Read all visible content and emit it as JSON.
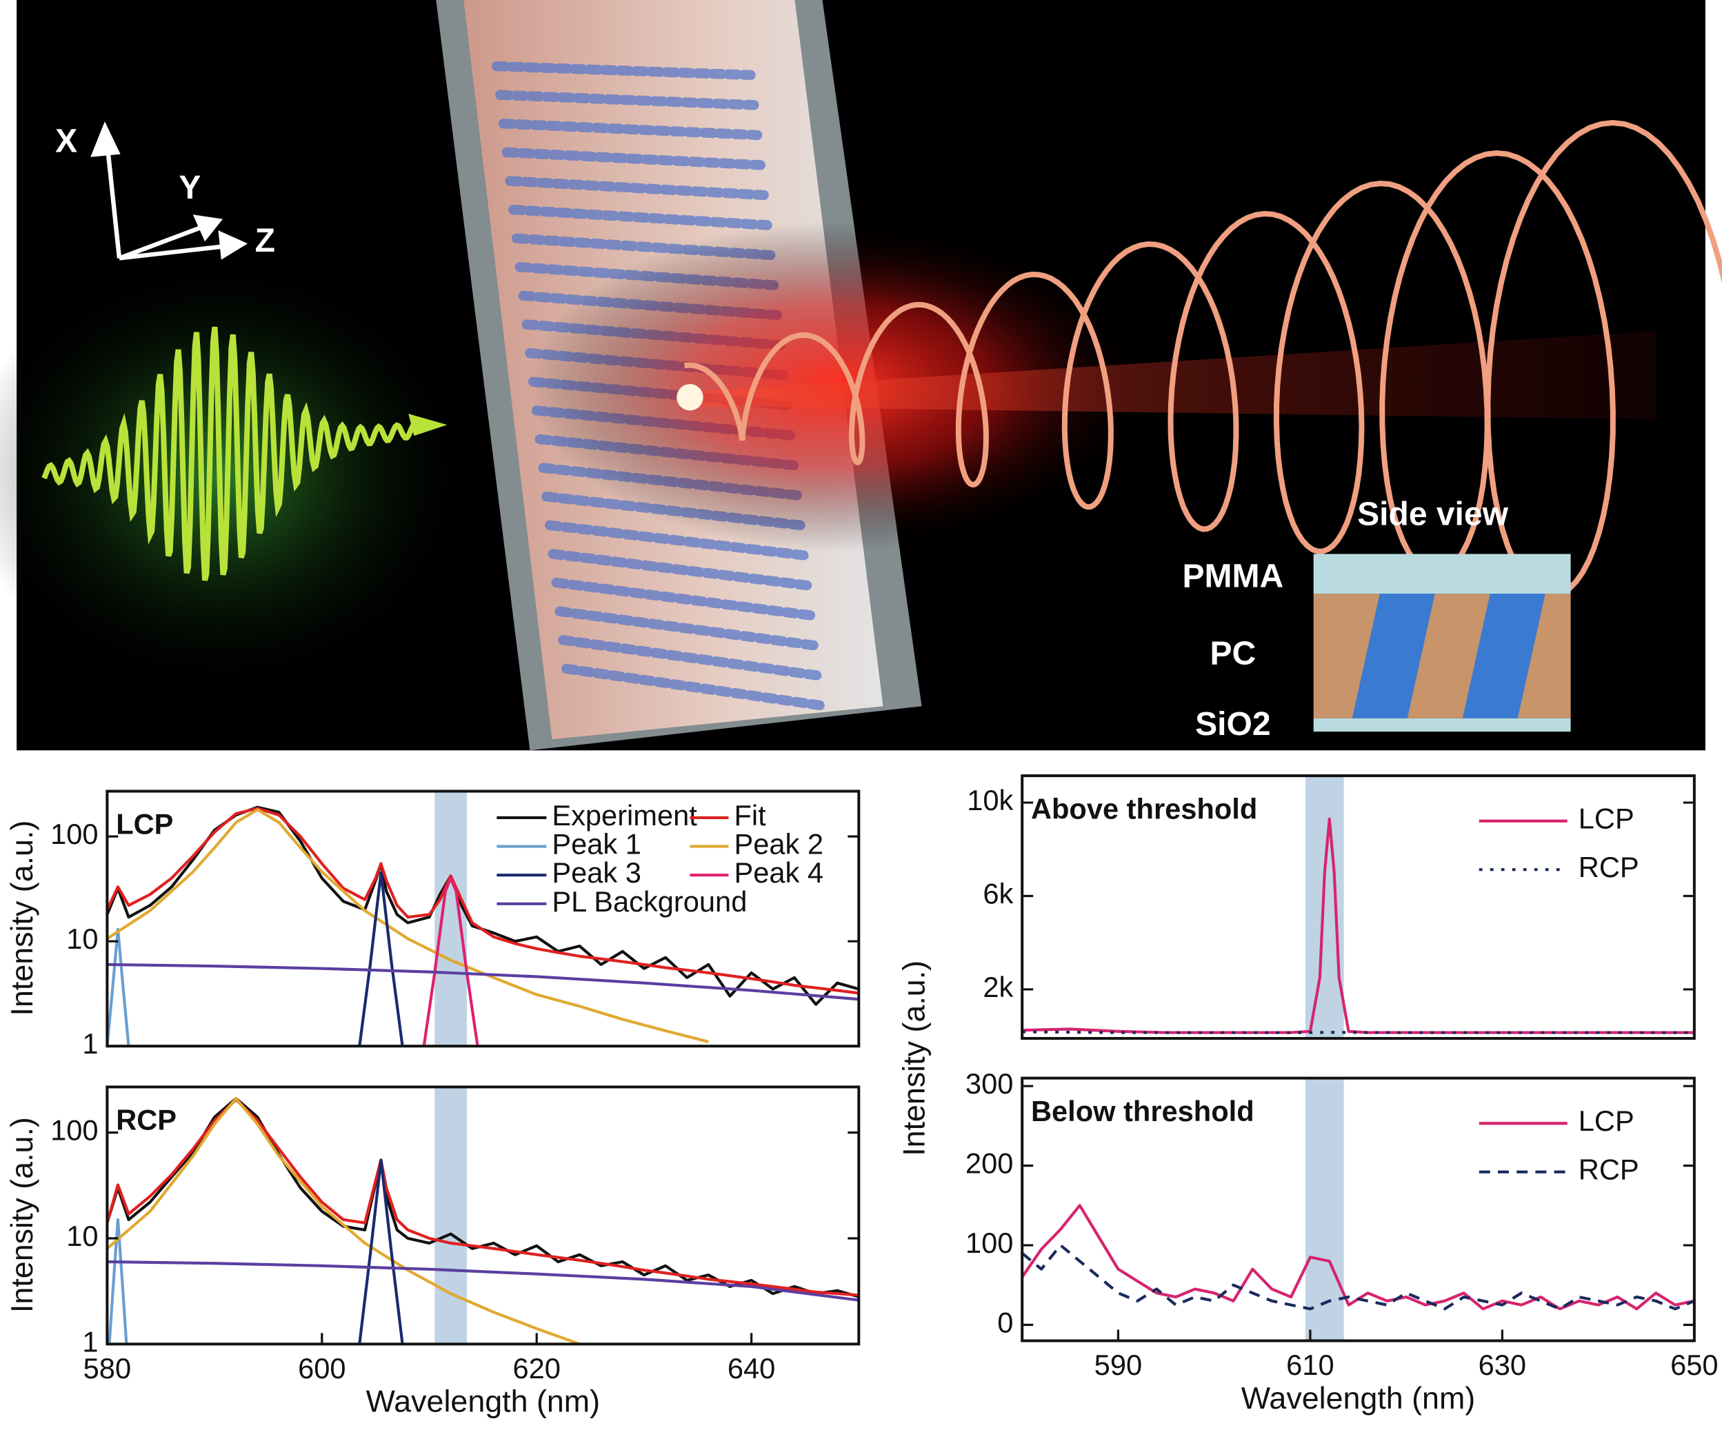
{
  "illustration": {
    "axes": [
      "X",
      "Y",
      "Z"
    ],
    "inset_title": "Side view",
    "layers": [
      "PMMA",
      "PC",
      "SiO2"
    ]
  },
  "chart_data": [
    {
      "type": "line",
      "label": "LCP",
      "y_label": "Intensity (a.u.)",
      "yscale": "log",
      "xlim": [
        580,
        650
      ],
      "ylim": [
        1,
        270
      ],
      "yticks": [
        1,
        10,
        100
      ],
      "highlight": [
        610.5,
        613.5
      ],
      "grid": false,
      "series": [
        {
          "name": "Experiment",
          "color": "#111111",
          "x": [
            580,
            581,
            582,
            584,
            586,
            588,
            590,
            592,
            594,
            596,
            598,
            600,
            602,
            604,
            605,
            605.5,
            606,
            607,
            608,
            610,
            611,
            612,
            613,
            614,
            616,
            618,
            620,
            622,
            624,
            626,
            628,
            630,
            632,
            634,
            636,
            638,
            640,
            642,
            644,
            646,
            648,
            650
          ],
          "values": [
            18,
            32,
            17,
            22,
            33,
            60,
            115,
            160,
            190,
            170,
            90,
            40,
            24,
            20,
            38,
            55,
            30,
            18,
            15,
            17,
            28,
            42,
            22,
            14,
            12,
            10,
            11,
            8,
            9,
            6,
            8,
            5.5,
            7,
            4.5,
            6,
            3,
            5,
            3.5,
            4.5,
            2.5,
            4,
            3.5
          ]
        },
        {
          "name": "Fit",
          "color": "#e02020",
          "x": [
            580,
            581,
            582,
            584,
            586,
            588,
            590,
            592,
            594,
            596,
            598,
            600,
            602,
            604,
            605,
            605.5,
            606,
            607,
            608,
            610,
            611,
            612,
            613,
            614,
            616,
            618,
            620,
            622,
            624,
            626,
            628,
            630,
            632,
            634,
            636,
            638,
            640,
            642,
            644,
            646,
            648,
            650
          ],
          "values": [
            20,
            33,
            22,
            28,
            40,
            65,
            110,
            165,
            185,
            160,
            100,
            55,
            32,
            25,
            40,
            55,
            38,
            22,
            17,
            18,
            25,
            42,
            25,
            15,
            11,
            9.5,
            8.5,
            7.8,
            7.2,
            6.8,
            6.4,
            6.0,
            5.6,
            5.3,
            5.0,
            4.7,
            4.4,
            4.1,
            3.8,
            3.6,
            3.4,
            3.2
          ]
        },
        {
          "name": "Peak 1",
          "color": "#6a9fcf",
          "x": [
            580,
            580.5,
            581,
            581.5,
            582
          ],
          "values": [
            1,
            3.5,
            13,
            3.5,
            1
          ]
        },
        {
          "name": "Peak 2",
          "color": "#e0a930",
          "x": [
            580,
            584,
            588,
            590,
            592,
            594,
            596,
            598,
            600,
            604,
            608,
            612,
            616,
            620,
            624,
            628,
            632,
            636
          ],
          "values": [
            10.6,
            19.6,
            46,
            78,
            136,
            180,
            136,
            78,
            46,
            19.6,
            10.6,
            6.6,
            4.5,
            3.1,
            2.4,
            1.8,
            1.4,
            1.1
          ]
        },
        {
          "name": "Peak 3",
          "color": "#1a2a6e",
          "x": [
            603.5,
            604.5,
            605.5,
            606.5,
            607.5
          ],
          "values": [
            1,
            6,
            45,
            6,
            1
          ]
        },
        {
          "name": "Peak 4",
          "color": "#e0206e",
          "x": [
            609.5,
            610.5,
            611.5,
            612,
            612.5,
            613.5,
            614.5
          ],
          "values": [
            1,
            5,
            30,
            40,
            30,
            5,
            1
          ]
        },
        {
          "name": "PL Background",
          "color": "#5b3fa0",
          "x": [
            580,
            590,
            600,
            610,
            620,
            630,
            640,
            650
          ],
          "values": [
            6,
            5.8,
            5.5,
            5.1,
            4.6,
            4.0,
            3.4,
            2.8
          ]
        }
      ]
    },
    {
      "type": "line",
      "label": "RCP",
      "y_label": "Intensity (a.u.)",
      "x_label": "Wavelength (nm)",
      "yscale": "log",
      "xlim": [
        580,
        650
      ],
      "ylim": [
        1,
        270
      ],
      "xticks": [
        580,
        600,
        620,
        640
      ],
      "yticks": [
        1,
        10,
        100
      ],
      "highlight": [
        610.5,
        613.5
      ],
      "grid": false,
      "series": [
        {
          "color": "#111111",
          "x": [
            580,
            581,
            582,
            584,
            586,
            588,
            590,
            592,
            594,
            596,
            598,
            600,
            602,
            604,
            605,
            605.5,
            606,
            607,
            608,
            610,
            612,
            614,
            616,
            618,
            620,
            622,
            624,
            626,
            628,
            630,
            632,
            634,
            636,
            638,
            640,
            642,
            644,
            646,
            648,
            650
          ],
          "values": [
            14,
            30,
            15,
            22,
            38,
            65,
            140,
            210,
            140,
            62,
            30,
            18,
            13,
            12,
            33,
            55,
            25,
            12,
            10,
            9,
            11,
            8,
            9,
            7,
            8.5,
            6,
            7,
            5.5,
            6,
            4.5,
            5.5,
            4,
            4.5,
            3.5,
            4,
            3,
            3.5,
            3,
            3.2,
            2.8
          ]
        },
        {
          "color": "#e02020",
          "x": [
            580,
            581,
            582,
            584,
            586,
            588,
            590,
            592,
            594,
            596,
            598,
            600,
            602,
            604,
            605,
            605.5,
            606,
            607,
            608,
            610,
            612,
            614,
            616,
            618,
            620,
            622,
            624,
            626,
            628,
            630,
            632,
            634,
            636,
            638,
            640,
            642,
            644,
            646,
            648,
            650
          ],
          "values": [
            14,
            32,
            17,
            25,
            40,
            70,
            130,
            205,
            130,
            70,
            38,
            22,
            15,
            14,
            35,
            55,
            30,
            15,
            12,
            10,
            9,
            8.5,
            8,
            7.5,
            7,
            6.6,
            6.2,
            5.8,
            5.4,
            5,
            4.7,
            4.4,
            4.1,
            3.9,
            3.7,
            3.5,
            3.3,
            3.1,
            3,
            2.9
          ]
        },
        {
          "color": "#6a9fcf",
          "x": [
            580.2,
            580.6,
            581,
            581.4,
            581.8
          ],
          "values": [
            1,
            4,
            15,
            4,
            1
          ]
        },
        {
          "color": "#e0a930",
          "x": [
            580,
            584,
            588,
            590,
            592,
            594,
            596,
            600,
            604,
            608,
            612,
            616,
            620,
            624
          ],
          "values": [
            8,
            18,
            60,
            120,
            210,
            120,
            60,
            20,
            9,
            5,
            3,
            2,
            1.4,
            1
          ]
        },
        {
          "color": "#1a2a6e",
          "x": [
            603.5,
            604.5,
            605.5,
            606.5,
            607.5
          ],
          "values": [
            1,
            7,
            55,
            7,
            1
          ]
        },
        {
          "color": "#5b3fa0",
          "x": [
            580,
            590,
            600,
            610,
            620,
            630,
            640,
            650
          ],
          "values": [
            6,
            5.8,
            5.5,
            5.1,
            4.6,
            4.1,
            3.5,
            2.6
          ]
        }
      ]
    },
    {
      "type": "line",
      "label": "Above threshold",
      "y_label": "Intensity (a.u.)",
      "xlim": [
        580,
        650
      ],
      "ylim": [
        -100,
        11150
      ],
      "yticks": [
        {
          "value": 2000,
          "label": "2k"
        },
        {
          "value": 6000,
          "label": "6k"
        },
        {
          "value": 10000,
          "label": "10k"
        }
      ],
      "highlight": [
        609.5,
        613.5
      ],
      "grid": false,
      "series": [
        {
          "name": "LCP",
          "color": "#d6246e",
          "line_style": "solid",
          "x": [
            580,
            585,
            590,
            595,
            600,
            605,
            608,
            610,
            611,
            611.5,
            612,
            612.5,
            613,
            614,
            616,
            620,
            625,
            630,
            635,
            640,
            645,
            650
          ],
          "values": [
            250,
            300,
            200,
            150,
            150,
            150,
            150,
            200,
            2500,
            7000,
            9300,
            7000,
            2500,
            200,
            150,
            150,
            150,
            150,
            150,
            150,
            150,
            150
          ]
        },
        {
          "name": "RCP",
          "color": "#1a2a5e",
          "line_style": "dotted",
          "x": [
            580,
            590,
            600,
            610,
            612,
            620,
            630,
            640,
            650
          ],
          "values": [
            180,
            150,
            150,
            150,
            160,
            150,
            150,
            150,
            150
          ]
        }
      ]
    },
    {
      "type": "line",
      "label": "Below threshold",
      "x_label": "Wavelength (nm)",
      "xlim": [
        580,
        650
      ],
      "ylim": [
        -20,
        310
      ],
      "xticks": [
        590,
        610,
        630,
        650
      ],
      "yticks": [
        0,
        100,
        200,
        300
      ],
      "highlight": [
        609.5,
        613.5
      ],
      "grid": false,
      "x": [
        580,
        582,
        584,
        586,
        588,
        590,
        592,
        594,
        596,
        598,
        600,
        602,
        604,
        606,
        608,
        610,
        612,
        614,
        616,
        618,
        620,
        622,
        624,
        626,
        628,
        630,
        632,
        634,
        636,
        638,
        640,
        642,
        644,
        646,
        648,
        650
      ],
      "series": [
        {
          "name": "LCP",
          "color": "#d6246e",
          "line_style": "solid",
          "values": [
            60,
            95,
            120,
            150,
            110,
            70,
            55,
            40,
            35,
            45,
            40,
            30,
            70,
            45,
            35,
            85,
            80,
            25,
            40,
            30,
            35,
            25,
            30,
            40,
            20,
            30,
            25,
            35,
            20,
            30,
            25,
            35,
            20,
            40,
            25,
            30
          ]
        },
        {
          "name": "RCP",
          "color": "#1a2a5e",
          "line_style": "dashed",
          "values": [
            90,
            70,
            100,
            80,
            60,
            40,
            30,
            45,
            25,
            35,
            30,
            50,
            40,
            30,
            25,
            20,
            30,
            35,
            30,
            25,
            40,
            30,
            20,
            35,
            30,
            25,
            40,
            30,
            20,
            35,
            30,
            25,
            35,
            30,
            20,
            30
          ]
        }
      ]
    }
  ]
}
